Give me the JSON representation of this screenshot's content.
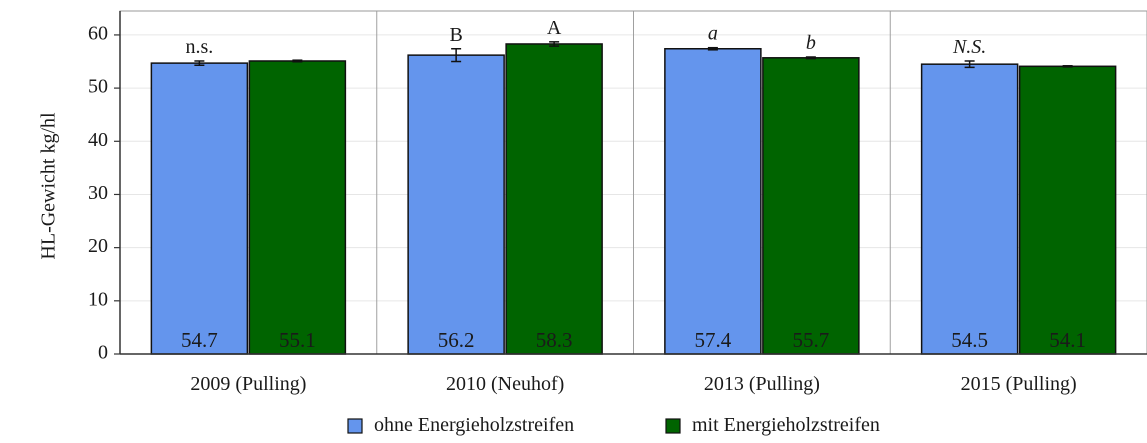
{
  "chart_data": {
    "type": "bar",
    "ylabel": "HL-Gewicht kg/hl",
    "ylim": [
      0,
      60
    ],
    "yticks": [
      0,
      10,
      20,
      30,
      40,
      50,
      60
    ],
    "grid": true,
    "legend_position": "bottom",
    "categories": [
      "2009 (Pulling)",
      "2010 (Neuhof)",
      "2013 (Pulling)",
      "2015 (Pulling)"
    ],
    "series": [
      {
        "name": "ohne Energieholzstreifen",
        "color": "#6495ED",
        "values": [
          54.7,
          56.2,
          57.4,
          54.5
        ],
        "labels": [
          "54.7",
          "56.2",
          "57.4",
          "54.5"
        ],
        "error": [
          0.4,
          1.2,
          0.2,
          0.6
        ]
      },
      {
        "name": "mit Energieholzstreifen",
        "color": "#006400",
        "values": [
          55.1,
          58.3,
          55.7,
          54.1
        ],
        "labels": [
          "55.1",
          "58.3",
          "55.7",
          "54.1"
        ],
        "error": [
          0.15,
          0.4,
          0.15,
          0.1
        ]
      }
    ],
    "annotations": [
      {
        "category": 0,
        "series": 0,
        "text": "n.s.",
        "italic": false
      },
      {
        "category": 1,
        "series": 0,
        "text": "B",
        "italic": false
      },
      {
        "category": 1,
        "series": 1,
        "text": "A",
        "italic": false
      },
      {
        "category": 2,
        "series": 0,
        "text": "a",
        "italic": true
      },
      {
        "category": 2,
        "series": 1,
        "text": "b",
        "italic": true
      },
      {
        "category": 3,
        "series": 0,
        "text": "N.S.",
        "italic": true
      }
    ]
  }
}
